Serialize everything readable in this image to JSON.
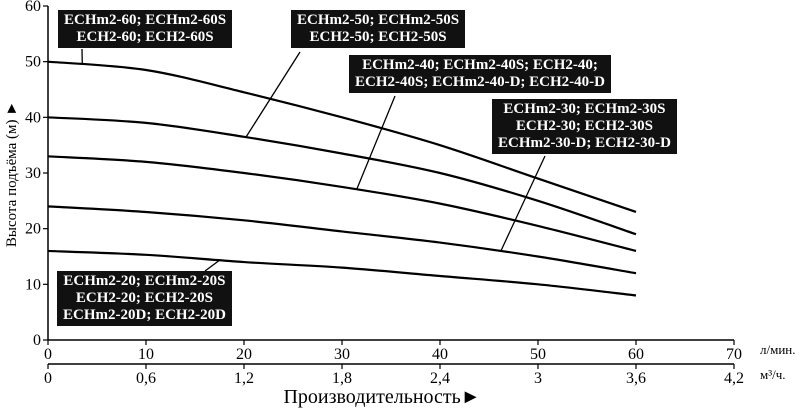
{
  "chart_data": {
    "type": "line",
    "x_primary": {
      "unit": "л/мин.",
      "ticks": [
        0,
        10,
        20,
        30,
        40,
        50,
        60,
        70
      ],
      "range": [
        0,
        70
      ]
    },
    "x_secondary": {
      "unit": "м³/ч.",
      "tick_labels": [
        "0",
        "0,6",
        "1,2",
        "1,8",
        "2,4",
        "3",
        "3,6",
        "4,2"
      ]
    },
    "y_axis": {
      "ticks": [
        0,
        10,
        20,
        30,
        40,
        50,
        60
      ],
      "range": [
        0,
        60
      ]
    },
    "xlabel": "Производительность►",
    "ylabel": "Высота подъёма (м) ►",
    "grid": false,
    "series": [
      {
        "label_lines": [
          "ECHm2-60; ECHm2-60S",
          "ECH2-60; ECH2-60S"
        ],
        "x": [
          0,
          10,
          20,
          30,
          40,
          50,
          60
        ],
        "y": [
          50,
          48.5,
          44.5,
          40,
          35,
          29,
          23
        ]
      },
      {
        "label_lines": [
          "ECHm2-50; ECHm2-50S",
          "ECH2-50; ECH2-50S"
        ],
        "x": [
          0,
          10,
          20,
          30,
          40,
          50,
          60
        ],
        "y": [
          40,
          39,
          36.5,
          33.5,
          30,
          25,
          19
        ]
      },
      {
        "label_lines": [
          "ECHm2-40; ECHm2-40S; ECH2-40;",
          "ECH2-40S; ECHm2-40-D; ECH2-40-D"
        ],
        "x": [
          0,
          10,
          20,
          30,
          40,
          50,
          60
        ],
        "y": [
          33,
          32,
          30,
          27.5,
          24.5,
          20.5,
          16
        ]
      },
      {
        "label_lines": [
          "ECHm2-30; ECHm2-30S",
          "ECH2-30; ECH2-30S",
          "ECHm2-30-D; ECH2-30-D"
        ],
        "x": [
          0,
          10,
          20,
          30,
          40,
          50,
          60
        ],
        "y": [
          24,
          23,
          21.5,
          19.5,
          17.5,
          15,
          12
        ]
      },
      {
        "label_lines": [
          "ECHm2-20; ECHm2-20S",
          "ECH2-20; ECH2-20S",
          "ECHm2-20D; ECH2-20D"
        ],
        "x": [
          0,
          10,
          20,
          30,
          40,
          50,
          60
        ],
        "y": [
          16,
          15.3,
          14,
          13,
          11.5,
          10,
          8
        ]
      }
    ]
  }
}
